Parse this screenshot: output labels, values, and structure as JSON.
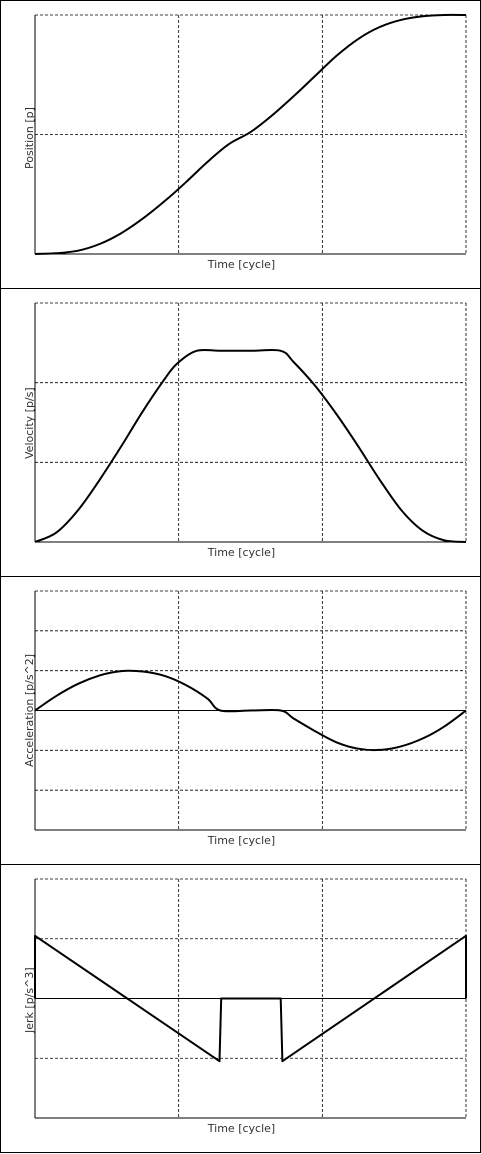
{
  "chart_data": [
    {
      "type": "line",
      "xlabel": "Time [cycle]",
      "ylabel": "Position [p]",
      "xlim": [
        0,
        1
      ],
      "ylim": [
        0,
        1
      ],
      "x_gridlines": 3,
      "y_gridlines": 2,
      "grid": true,
      "series": [
        {
          "x": [
            0,
            0.05,
            0.1,
            0.15,
            0.2,
            0.25,
            0.3,
            0.35,
            0.4,
            0.45,
            0.5,
            0.55,
            0.6,
            0.65,
            0.7,
            0.75,
            0.8,
            0.85,
            0.9,
            0.95,
            1
          ],
          "y": [
            0,
            0.003,
            0.014,
            0.042,
            0.087,
            0.148,
            0.22,
            0.3,
            0.385,
            0.46,
            0.51,
            0.58,
            0.66,
            0.745,
            0.83,
            0.9,
            0.95,
            0.98,
            0.995,
            1,
            1
          ]
        }
      ]
    },
    {
      "type": "line",
      "xlabel": "Time [cycle]",
      "ylabel": "Velocity [p/s]",
      "xlim": [
        0,
        1
      ],
      "ylim": [
        0,
        1.5
      ],
      "x_gridlines": 3,
      "y_gridlines": 3,
      "grid": true,
      "series": [
        {
          "x": [
            0,
            0.05,
            0.1,
            0.15,
            0.2,
            0.25,
            0.3,
            0.33,
            0.375,
            0.43,
            0.5,
            0.57,
            0.6,
            0.65,
            0.7,
            0.75,
            0.8,
            0.85,
            0.9,
            0.95,
            1
          ],
          "y": [
            0,
            0.06,
            0.2,
            0.39,
            0.6,
            0.82,
            1.02,
            1.12,
            1.2,
            1.2,
            1.2,
            1.2,
            1.13,
            0.98,
            0.8,
            0.6,
            0.39,
            0.2,
            0.07,
            0.01,
            0
          ]
        }
      ]
    },
    {
      "type": "line",
      "xlabel": "Time [cycle]",
      "ylabel": "Acceleration [p/s^2]",
      "xlim": [
        0,
        1
      ],
      "ylim": [
        -3,
        3
      ],
      "x_gridlines": 3,
      "y_gridlines": 6,
      "grid": true,
      "zero_line": true,
      "series": [
        {
          "x": [
            0,
            0.05,
            0.1,
            0.15,
            0.2,
            0.25,
            0.3,
            0.35,
            0.4,
            0.43,
            0.5,
            0.57,
            0.6,
            0.65,
            0.7,
            0.75,
            0.8,
            0.85,
            0.9,
            0.95,
            1
          ],
          "y": [
            0,
            0.37,
            0.67,
            0.88,
            0.99,
            0.98,
            0.87,
            0.64,
            0.3,
            0,
            0,
            0,
            -0.2,
            -0.52,
            -0.8,
            -0.96,
            -0.99,
            -0.9,
            -0.7,
            -0.4,
            0
          ]
        }
      ]
    },
    {
      "type": "line",
      "xlabel": "Time [cycle]",
      "ylabel": "Jerk [p/s^3]",
      "xlim": [
        0,
        1
      ],
      "ylim": [
        -2,
        2
      ],
      "x_gridlines": 3,
      "y_gridlines": 4,
      "grid": true,
      "zero_line": true,
      "series": [
        {
          "x": [
            0,
            0,
            0.428,
            0.432,
            0.57,
            0.574,
            1,
            1
          ],
          "y": [
            0,
            1.05,
            -1.05,
            0,
            0,
            -1.05,
            1.05,
            0
          ]
        }
      ]
    }
  ]
}
